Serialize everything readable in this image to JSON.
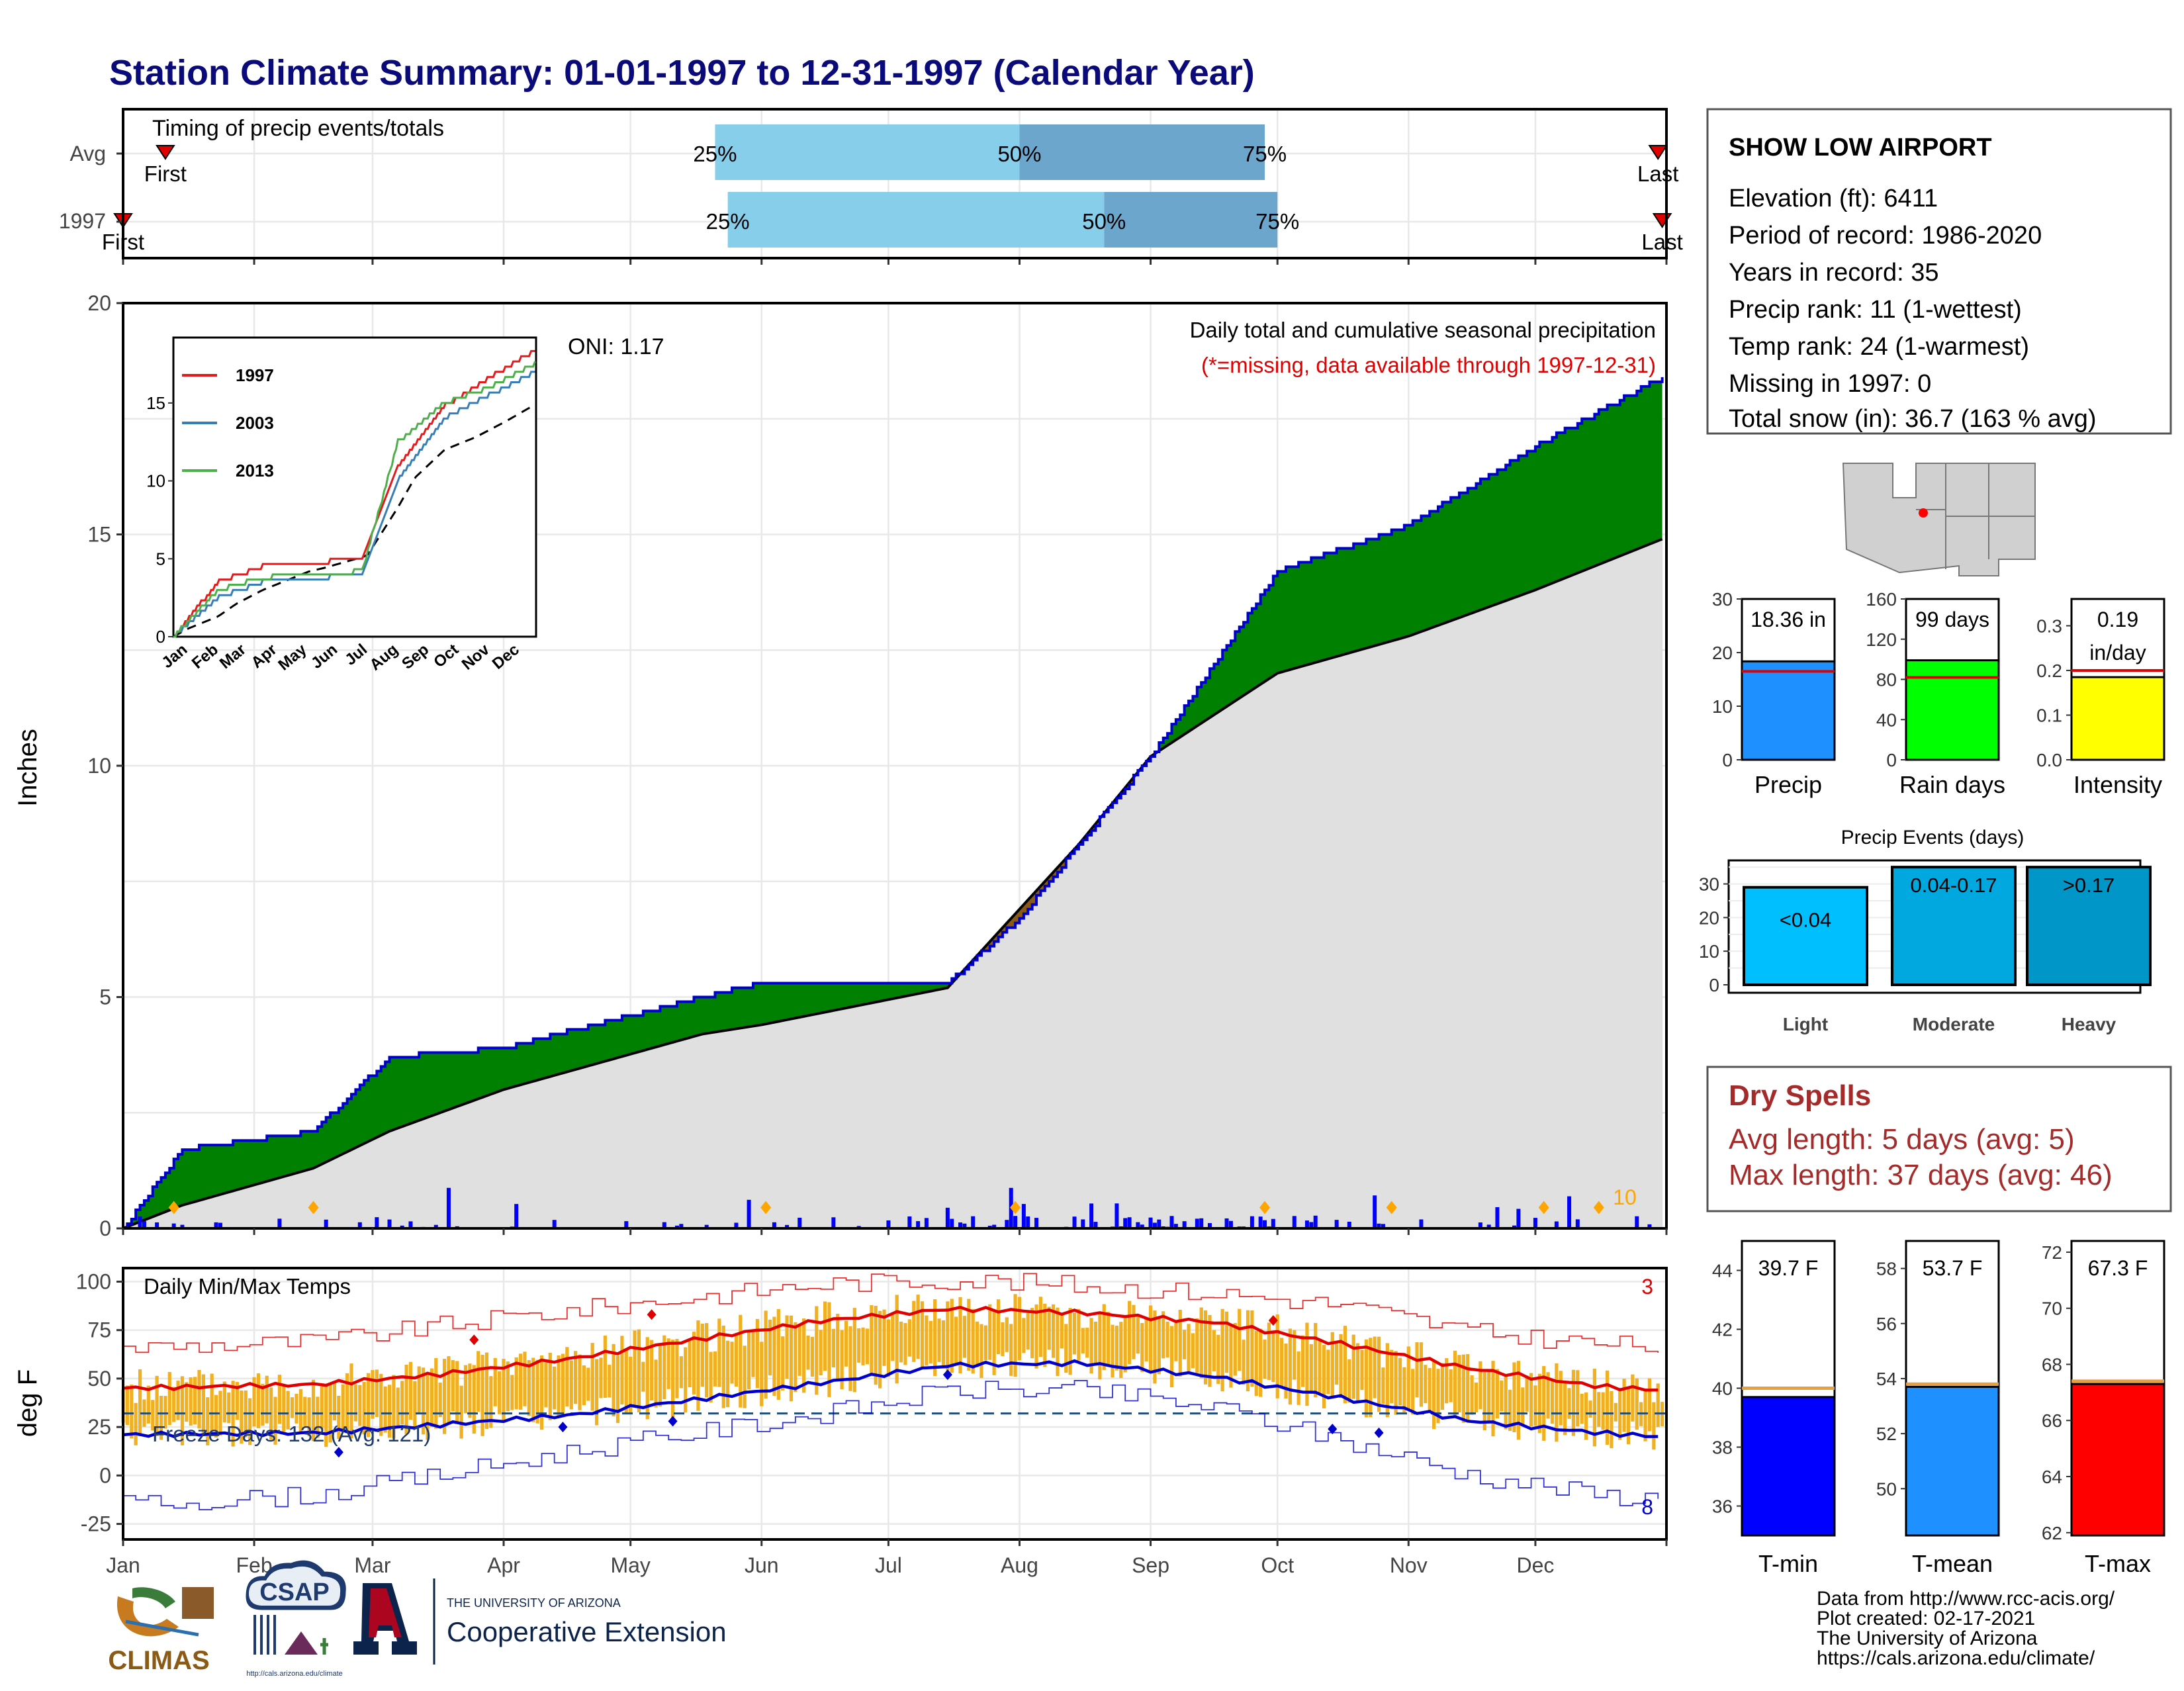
{
  "header": {
    "title": "Station Climate Summary: 01-01-1997 to 12-31-1997 (Calendar Year)"
  },
  "timing_panel": {
    "label": "Timing of precip events/totals",
    "rows": [
      "Avg",
      "1997"
    ],
    "first_label": "First",
    "last_label": "Last",
    "avg": {
      "first": "Jan 11",
      "q25": "May 21",
      "q50": "Aug 1",
      "q75": "Sep 28",
      "last": "Dec 30"
    },
    "current": {
      "first": "Jan 1",
      "q25": "May 24",
      "q50": "Aug 21",
      "q75": "Oct 1",
      "last": "Dec 31"
    },
    "pct_labels": [
      "25%",
      "50%",
      "75%"
    ],
    "colors": {
      "q1": "#87ceeb",
      "q2": "#6ca6cd",
      "marker": "#e00000"
    }
  },
  "precip_panel": {
    "ylabel": "Inches",
    "title": "Daily total and cumulative seasonal precipitation",
    "subtitle": "(*=missing, data available through 1997-12-31)",
    "oni": "ONI: 1.17",
    "corner_value": "10",
    "yticks": [
      "0",
      "5",
      "10",
      "15",
      "20"
    ],
    "months": [
      "Jan",
      "Feb",
      "Mar",
      "Apr",
      "May",
      "Jun",
      "Jul",
      "Aug",
      "Sep",
      "Oct",
      "Nov",
      "Dec"
    ],
    "colors": {
      "above": "#008000",
      "below": "#8b5a14",
      "avg_fill": "#e0e0e0",
      "line": "#0000cc",
      "bars": "#0000ff",
      "diamond": "#ffa500"
    }
  },
  "inset": {
    "legend": [
      {
        "label": "1997",
        "color": "#e41a1c"
      },
      {
        "label": "2003",
        "color": "#377eb8"
      },
      {
        "label": "2013",
        "color": "#4daf4a"
      }
    ],
    "yticks": [
      "0",
      "5",
      "10",
      "15"
    ],
    "months": [
      "Jan",
      "Feb",
      "Mar",
      "Apr",
      "May",
      "Jun",
      "Jul",
      "Aug",
      "Sep",
      "Oct",
      "Nov",
      "Dec"
    ]
  },
  "temp_panel": {
    "ylabel": "deg F",
    "label": "Daily Min/Max Temps",
    "freeze": "Freeze Days: 132 (Avg: 121)",
    "corner_high": "3",
    "corner_low": "8",
    "yticks": [
      "100",
      "75",
      "50",
      "25",
      "0",
      "-25"
    ],
    "months": [
      "Jan",
      "Feb",
      "Mar",
      "Apr",
      "May",
      "Jun",
      "Jul",
      "Aug",
      "Sep",
      "Oct",
      "Nov",
      "Dec"
    ],
    "colors": {
      "bars": "#f0b020",
      "max": "#e00000",
      "min": "#0000cc",
      "freeze": "#1f4e79"
    }
  },
  "station": {
    "name": "SHOW LOW AIRPORT",
    "lines": [
      "Elevation (ft): 6411",
      "Period of record: 1986-2020",
      "Years in record: 35",
      "Precip rank: 11 (1-wettest)",
      "Temp rank: 24 (1-warmest)",
      "Missing in 1997: 0",
      "Total snow (in): 36.7 (163 % avg)"
    ]
  },
  "mini_bars": [
    {
      "label": "Precip",
      "value_label": "18.36 in",
      "value": 18.36,
      "avg": 16.5,
      "yticks": [
        "0",
        "10",
        "20",
        "30"
      ],
      "ymax": 30,
      "color": "#1e90ff"
    },
    {
      "label": "Rain days",
      "value_label": "99 days",
      "value": 99,
      "avg": 82,
      "yticks": [
        "0",
        "40",
        "80",
        "120",
        "160"
      ],
      "ymax": 160,
      "color": "#00ff00"
    },
    {
      "label": "Intensity",
      "value_label": "0.19",
      "value_label2": "in/day",
      "value": 0.185,
      "avg": 0.2,
      "yticks": [
        "0.0",
        "0.1",
        "0.2",
        "0.3"
      ],
      "ymax": 0.36,
      "color": "#ffff00"
    }
  ],
  "events": {
    "title": "Precip Events (days)",
    "yticks": [
      "0",
      "10",
      "20",
      "30"
    ],
    "bars": [
      {
        "label": "Light",
        "range": "<0.04",
        "value": 29,
        "color": "#00bfff"
      },
      {
        "label": "Moderate",
        "range": "0.04-0.17",
        "value": 35,
        "color": "#00a8e0"
      },
      {
        "label": "Heavy",
        "range": ">0.17",
        "value": 35,
        "color": "#0096c7"
      }
    ]
  },
  "dry_spells": {
    "title": "Dry Spells",
    "avg_line": "Avg length: 5 days (avg: 5)",
    "max_line": "Max length: 37 days (avg: 46)"
  },
  "temp_bars": [
    {
      "label": "T-min",
      "value_label": "39.7 F",
      "value": 39.7,
      "avg": 40.0,
      "yticks": [
        "36",
        "38",
        "40",
        "42",
        "44"
      ],
      "ymin": 35,
      "ymax": 45,
      "color": "#0000ff"
    },
    {
      "label": "T-mean",
      "value_label": "53.7 F",
      "value": 53.7,
      "avg": 53.8,
      "yticks": [
        "50",
        "52",
        "54",
        "56",
        "58"
      ],
      "ymin": 48.3,
      "ymax": 59,
      "color": "#1e90ff"
    },
    {
      "label": "T-max",
      "value_label": "67.3 F",
      "value": 67.3,
      "avg": 67.4,
      "yticks": [
        "62",
        "64",
        "66",
        "68",
        "70",
        "72"
      ],
      "ymin": 61.9,
      "ymax": 72.4,
      "color": "#ff0000"
    }
  ],
  "footer": {
    "credits": [
      "Data from http://www.rcc-acis.org/",
      "Plot created: 02-17-2021",
      "The University of Arizona",
      "https://cals.arizona.edu/climate/"
    ],
    "logo_climas": "CLIMAS",
    "logo_csap": "CSAP",
    "csap_url": "http://cals.arizona.edu/climate",
    "ua_small": "THE UNIVERSITY OF ARIZONA",
    "ua_big": "Cooperative Extension"
  },
  "chart_data": [
    {
      "type": "area",
      "title": "Daily total and cumulative seasonal precipitation",
      "ylabel": "Inches",
      "ylim": [
        0,
        20
      ],
      "x": [
        "Jan 1",
        "Jan 15",
        "Feb 15",
        "Mar 5",
        "Apr 1",
        "May 18",
        "Jun 1",
        "Jul 15",
        "Aug 1",
        "Aug 15",
        "Sep 1",
        "Oct 1",
        "Nov 1",
        "Dec 1",
        "Dec 31"
      ],
      "series": [
        {
          "name": "1997",
          "values": [
            0.0,
            1.7,
            2.1,
            3.7,
            3.9,
            5.0,
            5.3,
            5.3,
            6.7,
            8.3,
            10.2,
            14.2,
            15.2,
            16.9,
            18.4
          ]
        },
        {
          "name": "Avg",
          "values": [
            0.0,
            0.5,
            1.3,
            2.1,
            3.0,
            4.2,
            4.4,
            5.2,
            6.9,
            8.3,
            10.2,
            12.0,
            12.8,
            13.8,
            14.9
          ]
        }
      ]
    },
    {
      "type": "line",
      "title": "",
      "ylim": [
        0,
        20
      ],
      "series": [
        {
          "name": "1997",
          "x": [
            "Jan 1",
            "Feb 15",
            "Apr 1",
            "Jul 10",
            "Aug 15",
            "Oct 1",
            "Nov 15",
            "Dec 31"
          ],
          "values": [
            0.0,
            3.5,
            4.5,
            5.0,
            11.0,
            14.8,
            16.6,
            18.4
          ]
        },
        {
          "name": "2003",
          "x": [
            "Jan 1",
            "Feb 15",
            "Apr 1",
            "Jul 10",
            "Aug 15",
            "Oct 1",
            "Nov 15",
            "Dec 31"
          ],
          "values": [
            0.0,
            2.5,
            3.5,
            4.0,
            10.0,
            14.0,
            15.5,
            17.0
          ]
        },
        {
          "name": "2013",
          "x": [
            "Jan 1",
            "Feb 15",
            "Apr 1",
            "Jul 10",
            "Aug 15",
            "Oct 1",
            "Nov 15",
            "Dec 31"
          ],
          "values": [
            0.0,
            3.0,
            3.8,
            4.2,
            12.5,
            15.0,
            16.0,
            17.5
          ]
        }
      ]
    },
    {
      "type": "line",
      "title": "Daily Min/Max Temps",
      "ylabel": "deg F",
      "ylim": [
        -25,
        100
      ],
      "x": [
        "Jan",
        "Feb",
        "Mar",
        "Apr",
        "May",
        "Jun",
        "Jul",
        "Aug",
        "Sep",
        "Oct",
        "Nov",
        "Dec",
        "Dec 31"
      ],
      "series": [
        {
          "name": "Avg max",
          "values": [
            45,
            47,
            52,
            60,
            70,
            80,
            86,
            84,
            79,
            68,
            55,
            46,
            44
          ]
        },
        {
          "name": "Avg min",
          "values": [
            21,
            22,
            26,
            31,
            39,
            48,
            57,
            58,
            51,
            40,
            28,
            22,
            20
          ]
        },
        {
          "name": "Record high",
          "values": [
            66,
            69,
            77,
            85,
            92,
            99,
            101,
            98,
            94,
            88,
            74,
            68,
            66
          ]
        },
        {
          "name": "Record low",
          "values": [
            -15,
            -10,
            0,
            12,
            22,
            32,
            44,
            44,
            35,
            18,
            0,
            -10,
            -12
          ]
        }
      ]
    }
  ]
}
